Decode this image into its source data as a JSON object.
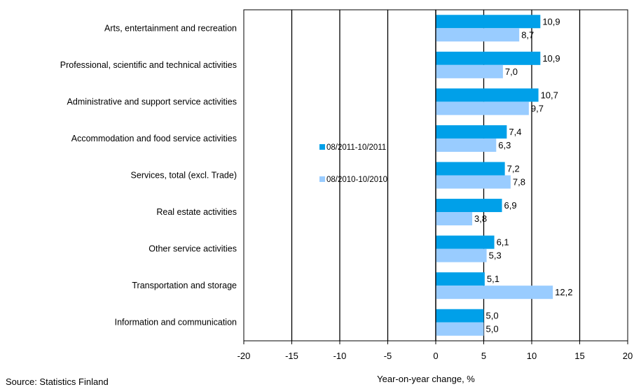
{
  "chart_data": {
    "type": "bar",
    "orientation": "horizontal",
    "categories": [
      "Arts, entertainment and recreation",
      "Professional, scientific and technical activities",
      "Administrative and support service activities",
      "Accommodation and food service activities",
      "Services, total (excl. Trade)",
      "Real estate activities",
      "Other service activities",
      "Transportation and storage",
      "Information and communication"
    ],
    "series": [
      {
        "name": "08/2011-10/2011",
        "color": "#00a0e9",
        "values": [
          10.9,
          10.9,
          10.7,
          7.4,
          7.2,
          6.9,
          6.1,
          5.1,
          5.0
        ],
        "labels": [
          "10,9",
          "10,9",
          "10,7",
          "7,4",
          "7,2",
          "6,9",
          "6,1",
          "5,1",
          "5,0"
        ]
      },
      {
        "name": "08/2010-10/2010",
        "color": "#99ccff",
        "values": [
          8.7,
          7.0,
          9.7,
          6.3,
          7.8,
          3.8,
          5.3,
          12.2,
          5.0
        ],
        "labels": [
          "8,7",
          "7,0",
          "9,7",
          "6,3",
          "7,8",
          "3,8",
          "5,3",
          "12,2",
          "5,0"
        ]
      }
    ],
    "xlim": [
      -20,
      20
    ],
    "xticks": [
      -20,
      -15,
      -10,
      -5,
      0,
      5,
      10,
      15,
      20
    ],
    "xlabel": "Year-on-year change, %",
    "grid": true,
    "legend_position": "center-left"
  },
  "source": "Source: Statistics Finland"
}
